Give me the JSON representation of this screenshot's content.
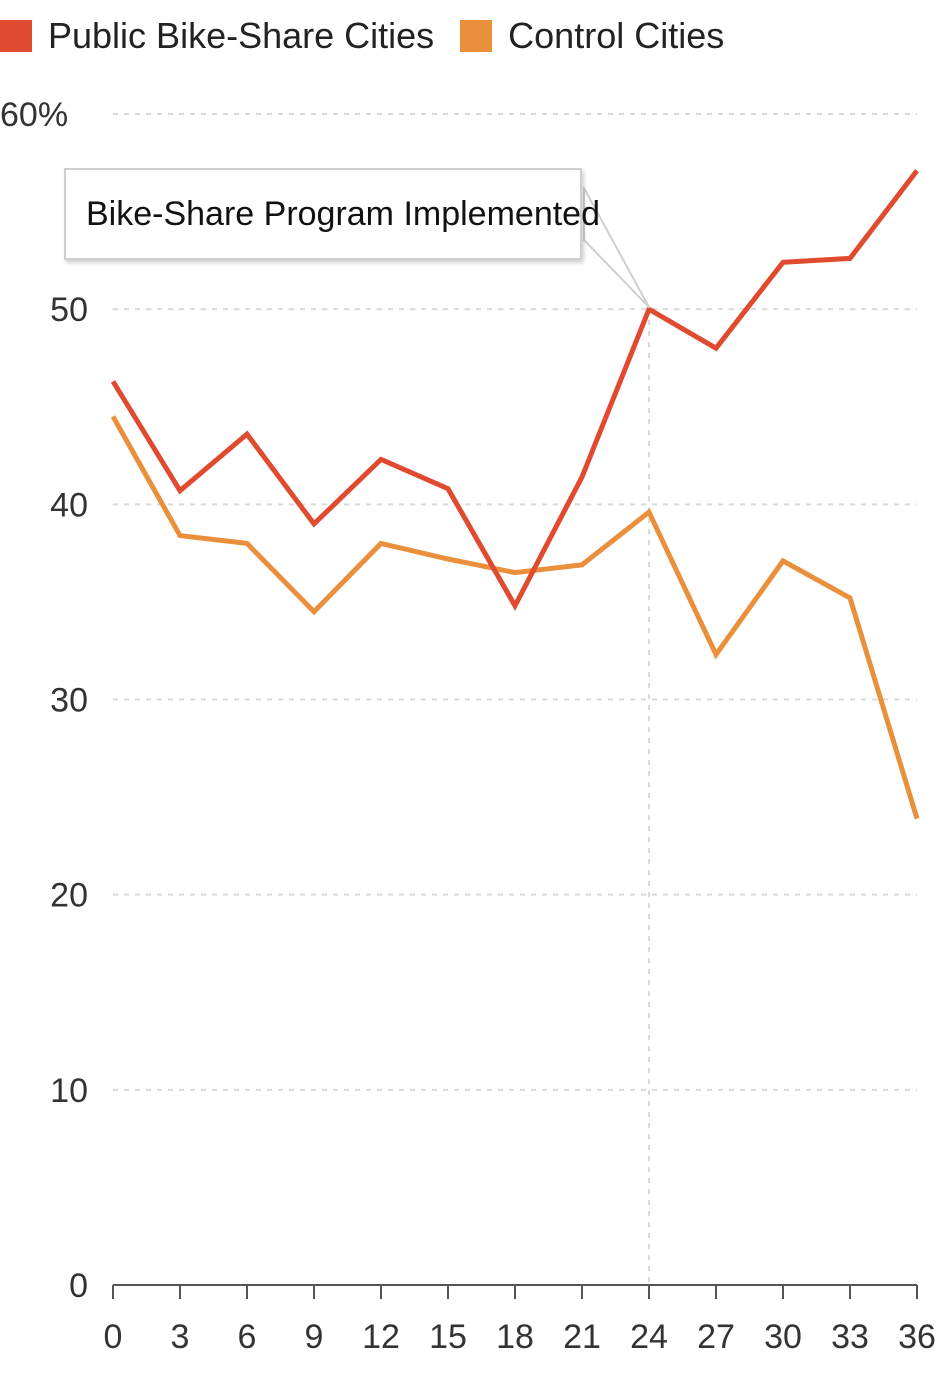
{
  "chart_data": {
    "type": "line",
    "x": [
      0,
      3,
      6,
      9,
      12,
      15,
      18,
      21,
      24,
      27,
      30,
      33,
      36
    ],
    "series": [
      {
        "name": "Public Bike-Share Cities",
        "color": "#e04a2f",
        "values": [
          46.3,
          40.7,
          43.6,
          39.0,
          42.3,
          40.8,
          34.8,
          41.4,
          50.0,
          48.0,
          52.4,
          52.6,
          57.1
        ]
      },
      {
        "name": "Control Cities",
        "color": "#ea8f3c",
        "values": [
          44.5,
          38.4,
          38.0,
          34.5,
          38.0,
          37.2,
          36.5,
          36.9,
          39.6,
          32.3,
          37.1,
          35.2,
          23.9
        ]
      }
    ],
    "y_ticks": [
      "0",
      "10",
      "20",
      "30",
      "40",
      "50",
      "60%"
    ],
    "x_ticks": [
      "0",
      "3",
      "6",
      "9",
      "12",
      "15",
      "18",
      "21",
      "24",
      "27",
      "30",
      "33",
      "36"
    ],
    "ylim": [
      0,
      60
    ],
    "xlim": [
      0,
      36
    ],
    "grid": true,
    "legend_position": "top-left",
    "annotation": {
      "text": "Bike-Share Program Implemented",
      "x": 24,
      "y": 50
    }
  }
}
